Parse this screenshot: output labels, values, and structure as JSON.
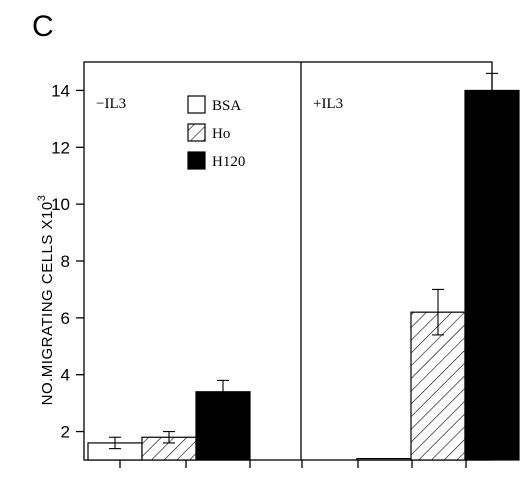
{
  "panel_letter": "C",
  "chart_data": {
    "type": "bar",
    "ylabel": "NO.MIGRATING CELLS X10",
    "ylabel_superscript": "3",
    "ylim": [
      1,
      15
    ],
    "yticks": [
      2,
      4,
      6,
      8,
      10,
      12,
      14
    ],
    "grid": false,
    "legend_placement": "top-left of first panel",
    "legend": [
      {
        "name": "BSA",
        "pattern": "open"
      },
      {
        "name": "Ho",
        "pattern": "hatched"
      },
      {
        "name": "H120",
        "pattern": "solid"
      }
    ],
    "panels": [
      {
        "label": "−IL3",
        "bars": [
          {
            "series": "BSA",
            "value": 1.6,
            "error": 0.2
          },
          {
            "series": "Ho",
            "value": 1.8,
            "error": 0.2
          },
          {
            "series": "H120",
            "value": 3.4,
            "error": 0.4
          }
        ]
      },
      {
        "label": "+IL3",
        "bars": [
          {
            "series": "BSA",
            "value": 1.05,
            "error": 0
          },
          {
            "series": "Ho",
            "value": 6.2,
            "error": 0.8
          },
          {
            "series": "H120",
            "value": 14.0,
            "error": 0.6
          }
        ]
      }
    ]
  }
}
